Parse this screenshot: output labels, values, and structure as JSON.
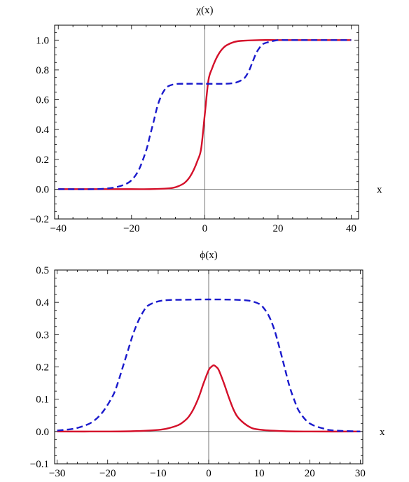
{
  "chart_data": [
    {
      "type": "line",
      "title": "χ(x)",
      "xlabel": "x",
      "ylabel": "",
      "xlim": [
        -41,
        42
      ],
      "ylim": [
        -0.2,
        1.1
      ],
      "xticks": [
        -40,
        -20,
        0,
        20,
        40
      ],
      "xtick_labels": [
        "−40",
        "−20",
        "0",
        "20",
        "40"
      ],
      "yticks": [
        -0.2,
        0.0,
        0.2,
        0.4,
        0.6,
        0.8,
        1.0
      ],
      "ytick_labels": [
        "−0.2",
        "0.0",
        "0.2",
        "0.4",
        "0.6",
        "0.8",
        "1.0"
      ],
      "grid": false,
      "series": [
        {
          "style": "solid",
          "color": "#d4102a",
          "x": [
            -40,
            -30,
            -20,
            -15,
            -10,
            -8,
            -6,
            -5,
            -4,
            -3,
            -2,
            -1,
            0,
            1,
            2,
            3,
            4,
            5,
            6,
            8,
            10,
            15,
            20,
            30,
            40
          ],
          "y": [
            0.0,
            0.0,
            0.0,
            0.0,
            0.005,
            0.013,
            0.034,
            0.054,
            0.085,
            0.13,
            0.19,
            0.27,
            0.5,
            0.73,
            0.81,
            0.87,
            0.915,
            0.946,
            0.966,
            0.987,
            0.995,
            1.0,
            1.0,
            1.0,
            1.0
          ]
        },
        {
          "style": "dashed",
          "color": "#1a1acc",
          "x": [
            -40,
            -30,
            -25,
            -22,
            -20,
            -18,
            -16,
            -15,
            -14,
            -13,
            -12,
            -11,
            -10,
            -8,
            -5,
            0,
            5,
            8,
            10,
            11,
            12,
            13,
            14,
            15,
            16,
            18,
            20,
            22,
            25,
            30,
            40
          ],
          "y": [
            0.0,
            0.0,
            0.01,
            0.03,
            0.06,
            0.13,
            0.26,
            0.355,
            0.45,
            0.55,
            0.62,
            0.665,
            0.69,
            0.705,
            0.707,
            0.707,
            0.707,
            0.712,
            0.73,
            0.75,
            0.79,
            0.85,
            0.91,
            0.95,
            0.975,
            0.99,
            1.0,
            1.0,
            1.0,
            1.0,
            1.0
          ]
        }
      ]
    },
    {
      "type": "line",
      "title": "ϕ(x)",
      "xlabel": "x",
      "ylabel": "",
      "xlim": [
        -30.5,
        30.5
      ],
      "ylim": [
        -0.1,
        0.5
      ],
      "xticks": [
        -30,
        -20,
        -10,
        0,
        10,
        20,
        30
      ],
      "xtick_labels": [
        "−30",
        "−20",
        "−10",
        "0",
        "10",
        "20",
        "30"
      ],
      "yticks": [
        -0.1,
        0.0,
        0.1,
        0.2,
        0.3,
        0.4,
        0.5
      ],
      "ytick_labels": [
        "−0.1",
        "0.0",
        "0.1",
        "0.2",
        "0.3",
        "0.4",
        "0.5"
      ],
      "grid": false,
      "series": [
        {
          "style": "solid",
          "color": "#d4102a",
          "x": [
            -30,
            -20,
            -15,
            -10,
            -8,
            -6,
            -5,
            -4,
            -3,
            -2,
            -1,
            0,
            0.5,
            1,
            1.5,
            2,
            3,
            4,
            5,
            6,
            8,
            10,
            15,
            20,
            30
          ],
          "y": [
            0.0,
            0.0,
            0.001,
            0.005,
            0.01,
            0.02,
            0.03,
            0.045,
            0.07,
            0.105,
            0.15,
            0.19,
            0.2,
            0.205,
            0.2,
            0.19,
            0.15,
            0.105,
            0.065,
            0.04,
            0.015,
            0.006,
            0.001,
            0.0,
            0.0
          ]
        },
        {
          "style": "dashed",
          "color": "#1a1acc",
          "x": [
            -30,
            -27,
            -25,
            -23,
            -21,
            -19,
            -18,
            -17,
            -16,
            -15,
            -14,
            -13,
            -12,
            -10,
            -8,
            -5,
            0,
            5,
            8,
            10,
            11,
            12,
            13,
            14,
            15,
            16,
            17,
            18,
            20,
            23,
            25,
            30
          ],
          "y": [
            0.003,
            0.008,
            0.016,
            0.03,
            0.06,
            0.11,
            0.15,
            0.2,
            0.25,
            0.3,
            0.34,
            0.37,
            0.39,
            0.403,
            0.407,
            0.408,
            0.409,
            0.408,
            0.405,
            0.395,
            0.38,
            0.355,
            0.315,
            0.26,
            0.2,
            0.14,
            0.095,
            0.06,
            0.025,
            0.008,
            0.003,
            0.0
          ]
        }
      ]
    }
  ]
}
